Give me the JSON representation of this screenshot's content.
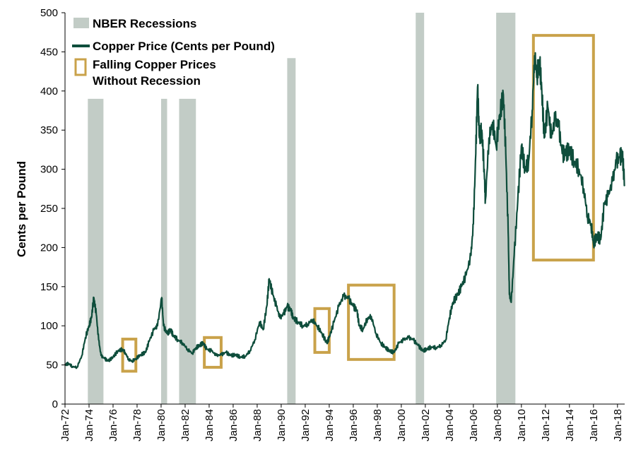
{
  "chart_data": {
    "type": "line",
    "ylabel": "Cents per Pound",
    "xlabel": "",
    "ylim": [
      0,
      500
    ],
    "yticks": [
      0,
      50,
      100,
      150,
      200,
      250,
      300,
      350,
      400,
      450,
      500
    ],
    "xlim": [
      1972.0,
      2018.6
    ],
    "xticks": [
      {
        "label": "Jan-72",
        "x": 1972
      },
      {
        "label": "Jan-74",
        "x": 1974
      },
      {
        "label": "Jan-76",
        "x": 1976
      },
      {
        "label": "Jan-78",
        "x": 1978
      },
      {
        "label": "Jan-80",
        "x": 1980
      },
      {
        "label": "Jan-82",
        "x": 1982
      },
      {
        "label": "Jan-84",
        "x": 1984
      },
      {
        "label": "Jan-86",
        "x": 1986
      },
      {
        "label": "Jan-88",
        "x": 1988
      },
      {
        "label": "Jan-90",
        "x": 1990
      },
      {
        "label": "Jan-92",
        "x": 1992
      },
      {
        "label": "Jan-94",
        "x": 1994
      },
      {
        "label": "Jan-96",
        "x": 1996
      },
      {
        "label": "Jan-98",
        "x": 1998
      },
      {
        "label": "Jan-00",
        "x": 2000
      },
      {
        "label": "Jan-02",
        "x": 2002
      },
      {
        "label": "Jan-04",
        "x": 2004
      },
      {
        "label": "Jan-06",
        "x": 2006
      },
      {
        "label": "Jan-08",
        "x": 2008
      },
      {
        "label": "Jan-10",
        "x": 2010
      },
      {
        "label": "Jan-12",
        "x": 2012
      },
      {
        "label": "Jan-14",
        "x": 2014
      },
      {
        "label": "Jan-16",
        "x": 2016
      },
      {
        "label": "Jan-18",
        "x": 2018
      }
    ],
    "legend": [
      {
        "label": "NBER Recessions",
        "kind": "recession"
      },
      {
        "label": "Copper Price (Cents per Pound)",
        "kind": "line"
      },
      {
        "label": "Falling Copper Prices",
        "label2": "Without Recession",
        "kind": "box"
      }
    ],
    "legend_position": "top-left",
    "colors": {
      "line": "#0e4d3b",
      "recession": "#c2ccc6",
      "box": "#c9a24a"
    },
    "recessions": [
      {
        "start": 1973.9,
        "end": 1975.2,
        "top": 390
      },
      {
        "start": 1980.0,
        "end": 1980.5,
        "top": 390
      },
      {
        "start": 1981.5,
        "end": 1982.9,
        "top": 390
      },
      {
        "start": 1990.5,
        "end": 1991.2,
        "top": 442
      },
      {
        "start": 2001.2,
        "end": 2001.9,
        "top": 500
      },
      {
        "start": 2007.9,
        "end": 2009.5,
        "top": 500
      }
    ],
    "highlight_boxes": [
      {
        "x0": 1976.8,
        "x1": 1977.9,
        "y0": 42,
        "y1": 83
      },
      {
        "x0": 1983.6,
        "x1": 1985.0,
        "y0": 47,
        "y1": 85
      },
      {
        "x0": 1992.8,
        "x1": 1994.0,
        "y0": 66,
        "y1": 122
      },
      {
        "x0": 1995.6,
        "x1": 1999.4,
        "y0": 57,
        "y1": 152
      },
      {
        "x0": 2011.0,
        "x1": 2016.0,
        "y0": 184,
        "y1": 471
      }
    ],
    "series": [
      {
        "name": "Copper Price (Cents per Pound)",
        "points": [
          [
            1972.0,
            50
          ],
          [
            1972.3,
            52
          ],
          [
            1972.6,
            48
          ],
          [
            1973.0,
            47
          ],
          [
            1973.4,
            62
          ],
          [
            1973.7,
            85
          ],
          [
            1974.0,
            100
          ],
          [
            1974.2,
            110
          ],
          [
            1974.4,
            136
          ],
          [
            1974.6,
            115
          ],
          [
            1974.8,
            82
          ],
          [
            1975.0,
            62
          ],
          [
            1975.3,
            58
          ],
          [
            1975.6,
            55
          ],
          [
            1976.0,
            60
          ],
          [
            1976.4,
            68
          ],
          [
            1976.8,
            70
          ],
          [
            1977.0,
            66
          ],
          [
            1977.3,
            57
          ],
          [
            1977.6,
            55
          ],
          [
            1977.9,
            58
          ],
          [
            1978.3,
            63
          ],
          [
            1978.7,
            66
          ],
          [
            1979.0,
            80
          ],
          [
            1979.4,
            95
          ],
          [
            1979.7,
            100
          ],
          [
            1980.05,
            136
          ],
          [
            1980.2,
            100
          ],
          [
            1980.5,
            90
          ],
          [
            1980.8,
            95
          ],
          [
            1981.0,
            88
          ],
          [
            1981.4,
            82
          ],
          [
            1981.8,
            78
          ],
          [
            1982.2,
            70
          ],
          [
            1982.6,
            65
          ],
          [
            1982.9,
            72
          ],
          [
            1983.2,
            75
          ],
          [
            1983.5,
            78
          ],
          [
            1983.8,
            70
          ],
          [
            1984.2,
            68
          ],
          [
            1984.6,
            62
          ],
          [
            1985.0,
            63
          ],
          [
            1985.4,
            66
          ],
          [
            1985.8,
            62
          ],
          [
            1986.2,
            63
          ],
          [
            1986.6,
            60
          ],
          [
            1987.0,
            61
          ],
          [
            1987.4,
            68
          ],
          [
            1987.8,
            82
          ],
          [
            1988.2,
            105
          ],
          [
            1988.5,
            95
          ],
          [
            1988.8,
            125
          ],
          [
            1989.0,
            160
          ],
          [
            1989.3,
            140
          ],
          [
            1989.6,
            125
          ],
          [
            1989.9,
            110
          ],
          [
            1990.2,
            115
          ],
          [
            1990.5,
            125
          ],
          [
            1990.8,
            120
          ],
          [
            1991.0,
            110
          ],
          [
            1991.4,
            105
          ],
          [
            1991.8,
            100
          ],
          [
            1992.2,
            102
          ],
          [
            1992.6,
            108
          ],
          [
            1993.0,
            100
          ],
          [
            1993.4,
            90
          ],
          [
            1993.8,
            78
          ],
          [
            1994.0,
            85
          ],
          [
            1994.4,
            105
          ],
          [
            1994.8,
            125
          ],
          [
            1995.2,
            138
          ],
          [
            1995.6,
            135
          ],
          [
            1996.0,
            125
          ],
          [
            1996.3,
            120
          ],
          [
            1996.5,
            100
          ],
          [
            1996.8,
            95
          ],
          [
            1997.2,
            110
          ],
          [
            1997.5,
            112
          ],
          [
            1997.9,
            90
          ],
          [
            1998.3,
            78
          ],
          [
            1998.7,
            72
          ],
          [
            1999.0,
            68
          ],
          [
            1999.4,
            66
          ],
          [
            1999.8,
            78
          ],
          [
            2000.2,
            82
          ],
          [
            2000.6,
            85
          ],
          [
            2001.0,
            82
          ],
          [
            2001.4,
            75
          ],
          [
            2001.8,
            68
          ],
          [
            2002.1,
            70
          ],
          [
            2002.5,
            73
          ],
          [
            2002.9,
            72
          ],
          [
            2003.3,
            75
          ],
          [
            2003.7,
            82
          ],
          [
            2004.0,
            110
          ],
          [
            2004.3,
            130
          ],
          [
            2004.7,
            140
          ],
          [
            2005.0,
            150
          ],
          [
            2005.4,
            165
          ],
          [
            2005.8,
            190
          ],
          [
            2006.0,
            230
          ],
          [
            2006.2,
            320
          ],
          [
            2006.35,
            405
          ],
          [
            2006.5,
            340
          ],
          [
            2006.7,
            350
          ],
          [
            2006.9,
            300
          ],
          [
            2007.0,
            260
          ],
          [
            2007.3,
            340
          ],
          [
            2007.6,
            360
          ],
          [
            2007.9,
            330
          ],
          [
            2008.2,
            370
          ],
          [
            2008.5,
            395
          ],
          [
            2008.7,
            320
          ],
          [
            2008.9,
            220
          ],
          [
            2009.0,
            140
          ],
          [
            2009.15,
            130
          ],
          [
            2009.4,
            190
          ],
          [
            2009.7,
            260
          ],
          [
            2010.0,
            330
          ],
          [
            2010.3,
            300
          ],
          [
            2010.6,
            310
          ],
          [
            2010.9,
            375
          ],
          [
            2011.1,
            445
          ],
          [
            2011.3,
            420
          ],
          [
            2011.5,
            440
          ],
          [
            2011.7,
            400
          ],
          [
            2011.9,
            340
          ],
          [
            2012.2,
            380
          ],
          [
            2012.5,
            340
          ],
          [
            2012.8,
            365
          ],
          [
            2013.1,
            355
          ],
          [
            2013.4,
            320
          ],
          [
            2013.7,
            320
          ],
          [
            2014.0,
            325
          ],
          [
            2014.4,
            310
          ],
          [
            2014.8,
            300
          ],
          [
            2015.2,
            275
          ],
          [
            2015.5,
            240
          ],
          [
            2015.8,
            230
          ],
          [
            2016.0,
            205
          ],
          [
            2016.3,
            215
          ],
          [
            2016.6,
            210
          ],
          [
            2016.9,
            255
          ],
          [
            2017.2,
            265
          ],
          [
            2017.6,
            285
          ],
          [
            2017.9,
            310
          ],
          [
            2018.2,
            315
          ],
          [
            2018.4,
            320
          ],
          [
            2018.6,
            280
          ]
        ]
      }
    ]
  }
}
